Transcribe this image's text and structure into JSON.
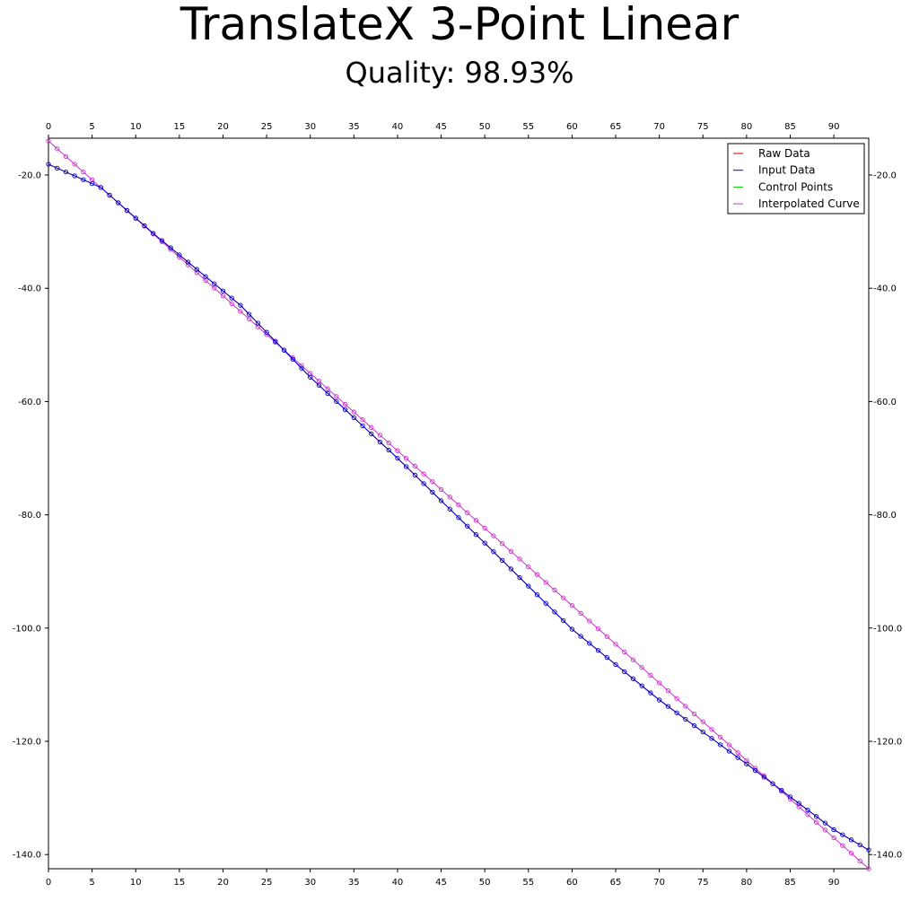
{
  "title": "TranslateX 3-Point Linear",
  "subtitle": "Quality: 98.93%",
  "chart_data": {
    "type": "line",
    "title": "TranslateX 3-Point Linear",
    "subtitle": "Quality: 98.93%",
    "xlim": [
      0,
      94
    ],
    "ylim": [
      -142.5,
      -13.5
    ],
    "x_ticks": [
      0,
      5,
      10,
      15,
      20,
      25,
      30,
      35,
      40,
      45,
      50,
      55,
      60,
      65,
      70,
      75,
      80,
      85,
      90
    ],
    "x_tick_labels": [
      "0",
      "5",
      "10",
      "15",
      "20",
      "25",
      "30",
      "35",
      "40",
      "45",
      "50",
      "55",
      "60",
      "65",
      "70",
      "75",
      "80",
      "85",
      "90"
    ],
    "y_ticks": [
      -20,
      -40,
      -60,
      -80,
      -100,
      -120,
      -140
    ],
    "y_tick_labels": [
      "-20.0",
      "-40.0",
      "-60.0",
      "-80.0",
      "-100.0",
      "-120.0",
      "-140.0"
    ],
    "x_axes": "top and bottom",
    "y_axes": "left and right",
    "grid": false,
    "legend_position": "top-right",
    "legend": [
      "Raw Data",
      "Input Data",
      "Control Points",
      "Interpolated Curve"
    ],
    "series": [
      {
        "name": "Raw Data",
        "color": "#cc0000",
        "x_range": [
          0,
          94
        ],
        "y_anchors": [
          [
            0,
            -18.1
          ],
          [
            6,
            -22.2
          ],
          [
            12,
            -30.3
          ],
          [
            22,
            -43.0
          ],
          [
            30,
            -55.7
          ],
          [
            40,
            -70.0
          ],
          [
            50,
            -85.0
          ],
          [
            60,
            -100.2
          ],
          [
            70,
            -112.7
          ],
          [
            80,
            -124.0
          ],
          [
            90,
            -135.6
          ],
          [
            94,
            -139.2
          ]
        ],
        "drawn": "hidden beneath Input Data"
      },
      {
        "name": "Input Data",
        "color": "#0000cc",
        "x_range": [
          0,
          94
        ],
        "y_anchors": [
          [
            0,
            -18.1
          ],
          [
            6,
            -22.2
          ],
          [
            12,
            -30.3
          ],
          [
            22,
            -43.0
          ],
          [
            30,
            -55.7
          ],
          [
            40,
            -70.0
          ],
          [
            50,
            -85.0
          ],
          [
            60,
            -100.2
          ],
          [
            70,
            -112.7
          ],
          [
            80,
            -124.0
          ],
          [
            90,
            -135.6
          ],
          [
            94,
            -139.2
          ]
        ],
        "markers": "small open circles at every integer x"
      },
      {
        "name": "Control Points",
        "color": "#00cc00",
        "points": [],
        "drawn": "legend only"
      },
      {
        "name": "Interpolated Curve",
        "color": "#cc33cc",
        "x_range": [
          0,
          94
        ],
        "y_anchors": [
          [
            0,
            -14.0
          ],
          [
            94,
            -142.5
          ]
        ],
        "markers": "small open circles at every integer x"
      }
    ]
  }
}
